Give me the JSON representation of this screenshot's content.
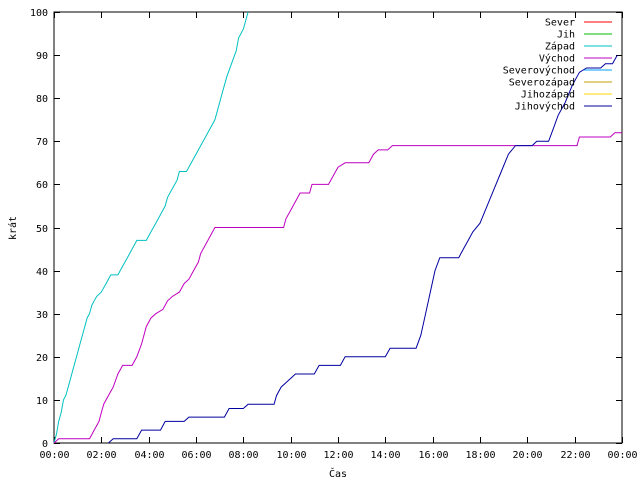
{
  "chart_data": {
    "type": "line",
    "xlabel": "Čas",
    "ylabel": "krát",
    "xlim": [
      0,
      24
    ],
    "ylim": [
      0,
      100
    ],
    "x_ticks": [
      {
        "value": 0,
        "label": "00:00"
      },
      {
        "value": 2,
        "label": "02:00"
      },
      {
        "value": 4,
        "label": "04:00"
      },
      {
        "value": 6,
        "label": "06:00"
      },
      {
        "value": 8,
        "label": "08:00"
      },
      {
        "value": 10,
        "label": "10:00"
      },
      {
        "value": 12,
        "label": "12:00"
      },
      {
        "value": 14,
        "label": "14:00"
      },
      {
        "value": 16,
        "label": "16:00"
      },
      {
        "value": 18,
        "label": "18:00"
      },
      {
        "value": 20,
        "label": "20:00"
      },
      {
        "value": 22,
        "label": "22:00"
      },
      {
        "value": 24,
        "label": "00:00"
      }
    ],
    "y_ticks": [
      0,
      10,
      20,
      30,
      40,
      50,
      60,
      70,
      80,
      90,
      100
    ],
    "grid": false,
    "legend_position": "top-right",
    "series": [
      {
        "name": "Sever",
        "color": "#ff0000",
        "points": []
      },
      {
        "name": "Jih",
        "color": "#00c000",
        "points": []
      },
      {
        "name": "Západ",
        "color": "#00c0c0",
        "points": [
          [
            0.0,
            0
          ],
          [
            0.1,
            2
          ],
          [
            0.2,
            5
          ],
          [
            0.3,
            7
          ],
          [
            0.4,
            10
          ],
          [
            0.5,
            11
          ],
          [
            0.6,
            13
          ],
          [
            0.7,
            15
          ],
          [
            0.8,
            17
          ],
          [
            0.9,
            19
          ],
          [
            1.0,
            21
          ],
          [
            1.1,
            23
          ],
          [
            1.2,
            25
          ],
          [
            1.3,
            27
          ],
          [
            1.4,
            29
          ],
          [
            1.5,
            30
          ],
          [
            1.6,
            32
          ],
          [
            1.7,
            33
          ],
          [
            1.8,
            34
          ],
          [
            2.0,
            35
          ],
          [
            2.2,
            37
          ],
          [
            2.4,
            39
          ],
          [
            2.7,
            39
          ],
          [
            2.9,
            41
          ],
          [
            3.1,
            43
          ],
          [
            3.3,
            45
          ],
          [
            3.5,
            47
          ],
          [
            3.9,
            47
          ],
          [
            4.1,
            49
          ],
          [
            4.3,
            51
          ],
          [
            4.5,
            53
          ],
          [
            4.7,
            55
          ],
          [
            4.8,
            57
          ],
          [
            5.0,
            59
          ],
          [
            5.2,
            61
          ],
          [
            5.3,
            63
          ],
          [
            5.6,
            63
          ],
          [
            5.8,
            65
          ],
          [
            6.0,
            67
          ],
          [
            6.2,
            69
          ],
          [
            6.4,
            71
          ],
          [
            6.6,
            73
          ],
          [
            6.8,
            75
          ],
          [
            6.9,
            77
          ],
          [
            7.1,
            81
          ],
          [
            7.3,
            85
          ],
          [
            7.5,
            88
          ],
          [
            7.7,
            91
          ],
          [
            7.8,
            94
          ],
          [
            8.0,
            96
          ],
          [
            8.1,
            98
          ],
          [
            8.2,
            100
          ]
        ]
      },
      {
        "name": "Východ",
        "color": "#c000c0",
        "points": [
          [
            0.0,
            0
          ],
          [
            0.2,
            1
          ],
          [
            1.5,
            1
          ],
          [
            1.7,
            3
          ],
          [
            1.9,
            5
          ],
          [
            2.0,
            7
          ],
          [
            2.1,
            9
          ],
          [
            2.3,
            11
          ],
          [
            2.5,
            13
          ],
          [
            2.7,
            16
          ],
          [
            2.9,
            18
          ],
          [
            3.3,
            18
          ],
          [
            3.5,
            20
          ],
          [
            3.7,
            23
          ],
          [
            3.9,
            27
          ],
          [
            4.1,
            29
          ],
          [
            4.3,
            30
          ],
          [
            4.6,
            31
          ],
          [
            4.8,
            33
          ],
          [
            5.0,
            34
          ],
          [
            5.3,
            35
          ],
          [
            5.5,
            37
          ],
          [
            5.7,
            38
          ],
          [
            5.9,
            40
          ],
          [
            6.1,
            42
          ],
          [
            6.2,
            44
          ],
          [
            6.4,
            46
          ],
          [
            6.6,
            48
          ],
          [
            6.8,
            50
          ],
          [
            9.7,
            50
          ],
          [
            9.8,
            52
          ],
          [
            10.0,
            54
          ],
          [
            10.2,
            56
          ],
          [
            10.4,
            58
          ],
          [
            10.8,
            58
          ],
          [
            10.9,
            60
          ],
          [
            11.6,
            60
          ],
          [
            11.8,
            62
          ],
          [
            12.0,
            64
          ],
          [
            12.3,
            65
          ],
          [
            13.3,
            65
          ],
          [
            13.5,
            67
          ],
          [
            13.7,
            68
          ],
          [
            14.1,
            68
          ],
          [
            14.3,
            69
          ],
          [
            22.1,
            69
          ],
          [
            22.2,
            71
          ],
          [
            23.5,
            71
          ],
          [
            23.7,
            72
          ],
          [
            24.0,
            72
          ]
        ]
      },
      {
        "name": "Severovýchod",
        "color": "#00a0ff",
        "points": []
      },
      {
        "name": "Severozápad",
        "color": "#c0a000",
        "points": []
      },
      {
        "name": "Jihozápad",
        "color": "#ffd700",
        "points": []
      },
      {
        "name": "Jihovýchod",
        "color": "#0000a0",
        "points": [
          [
            2.3,
            0
          ],
          [
            2.5,
            1
          ],
          [
            3.5,
            1
          ],
          [
            3.7,
            3
          ],
          [
            4.5,
            3
          ],
          [
            4.7,
            5
          ],
          [
            5.5,
            5
          ],
          [
            5.7,
            6
          ],
          [
            7.2,
            6
          ],
          [
            7.4,
            8
          ],
          [
            8.0,
            8
          ],
          [
            8.2,
            9
          ],
          [
            9.3,
            9
          ],
          [
            9.4,
            11
          ],
          [
            9.6,
            13
          ],
          [
            9.8,
            14
          ],
          [
            10.0,
            15
          ],
          [
            10.2,
            16
          ],
          [
            11.0,
            16
          ],
          [
            11.2,
            18
          ],
          [
            12.1,
            18
          ],
          [
            12.3,
            20
          ],
          [
            14.0,
            20
          ],
          [
            14.2,
            22
          ],
          [
            15.3,
            22
          ],
          [
            15.5,
            25
          ],
          [
            15.7,
            30
          ],
          [
            15.9,
            35
          ],
          [
            16.1,
            40
          ],
          [
            16.3,
            43
          ],
          [
            17.1,
            43
          ],
          [
            17.3,
            45
          ],
          [
            17.5,
            47
          ],
          [
            17.7,
            49
          ],
          [
            18.0,
            51
          ],
          [
            18.3,
            55
          ],
          [
            18.6,
            59
          ],
          [
            18.9,
            63
          ],
          [
            19.2,
            67
          ],
          [
            19.5,
            69
          ],
          [
            20.2,
            69
          ],
          [
            20.4,
            70
          ],
          [
            20.9,
            70
          ],
          [
            21.1,
            73
          ],
          [
            21.3,
            76
          ],
          [
            21.6,
            79
          ],
          [
            21.9,
            83
          ],
          [
            22.2,
            86
          ],
          [
            22.5,
            87
          ],
          [
            23.1,
            87
          ],
          [
            23.3,
            88
          ],
          [
            23.6,
            88
          ],
          [
            23.8,
            90
          ]
        ]
      }
    ]
  }
}
